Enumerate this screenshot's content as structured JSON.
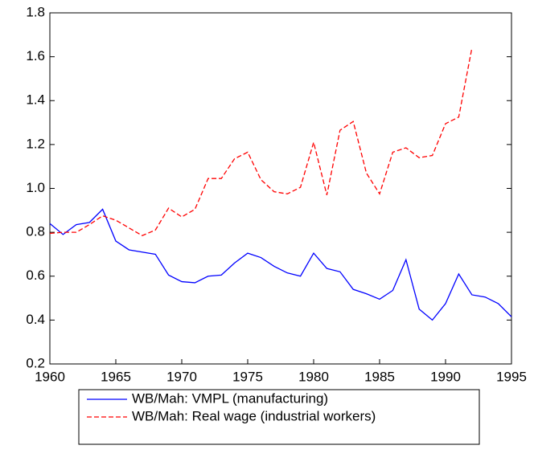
{
  "chart_data": {
    "type": "line",
    "x": [
      1960,
      1961,
      1962,
      1963,
      1964,
      1965,
      1966,
      1967,
      1968,
      1969,
      1970,
      1971,
      1972,
      1973,
      1974,
      1975,
      1976,
      1977,
      1978,
      1979,
      1980,
      1981,
      1982,
      1983,
      1984,
      1985,
      1986,
      1987,
      1988,
      1989,
      1990,
      1991,
      1992,
      1993,
      1994,
      1995
    ],
    "series": [
      {
        "name": "WB/Mah: VMPL (manufacturing)",
        "color": "#0000ff",
        "dash": false,
        "values": [
          0.84,
          0.79,
          0.835,
          0.845,
          0.905,
          0.76,
          0.72,
          0.71,
          0.7,
          0.605,
          0.575,
          0.57,
          0.6,
          0.605,
          0.66,
          0.705,
          0.685,
          0.645,
          0.615,
          0.6,
          0.705,
          0.635,
          0.62,
          0.54,
          0.52,
          0.495,
          0.535,
          0.675,
          0.45,
          0.4,
          0.475,
          0.61,
          0.515,
          0.505,
          0.475,
          0.415
        ]
      },
      {
        "name": "WB/Mah: Real wage (industrial workers)",
        "color": "#ff0000",
        "dash": true,
        "values": [
          0.795,
          0.8,
          0.8,
          0.835,
          0.875,
          0.855,
          0.82,
          0.785,
          0.81,
          0.91,
          0.87,
          0.905,
          1.045,
          1.045,
          1.135,
          1.165,
          1.04,
          0.985,
          0.975,
          1.005,
          1.21,
          0.97,
          1.265,
          1.305,
          1.07,
          0.975,
          1.165,
          1.185,
          1.14,
          1.15,
          1.295,
          1.325,
          1.64,
          null,
          null,
          null
        ]
      }
    ],
    "xlim": [
      1960,
      1995
    ],
    "xticks": [
      1960,
      1965,
      1970,
      1975,
      1980,
      1985,
      1990,
      1995
    ],
    "ylim": [
      0.2,
      1.8
    ],
    "yticks": [
      0.2,
      0.4,
      0.6,
      0.8,
      {
        "value": 1.0,
        "label": "1.0"
      },
      1.2,
      1.4,
      1.6,
      1.8
    ],
    "grid": false,
    "legend": "bottom"
  }
}
